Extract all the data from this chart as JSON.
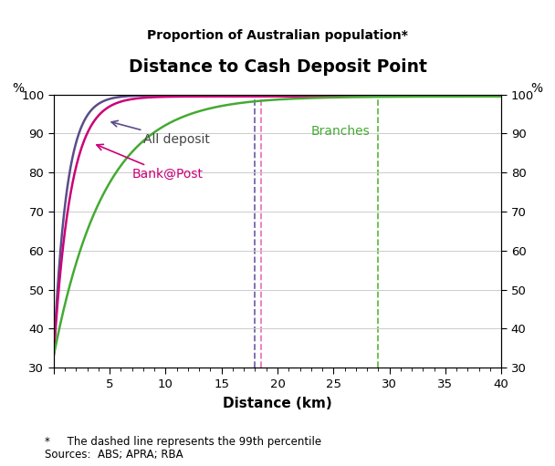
{
  "title": "Distance to Cash Deposit Point",
  "subtitle": "Proportion of Australian population*",
  "xlabel": "Distance (km)",
  "ylabel_left": "%",
  "ylabel_right": "%",
  "xlim": [
    0,
    40
  ],
  "ylim": [
    30,
    100
  ],
  "xticks": [
    0,
    5,
    10,
    15,
    20,
    25,
    30,
    35,
    40
  ],
  "yticks": [
    30,
    40,
    50,
    60,
    70,
    80,
    90,
    100
  ],
  "vline_alldeposit_x": 18.0,
  "vline_bankpost_x": 18.5,
  "vline_branches_x": 29.0,
  "color_all_deposit": "#5B4C8A",
  "color_bank_post": "#CC0077",
  "color_branches": "#44AA33",
  "color_vline_alldeposit": "#7766AA",
  "color_vline_bankpost": "#EE77BB",
  "color_vline_branches": "#66BB44",
  "footnote1": "*     The dashed line represents the 99th percentile",
  "footnote2": "Sources:  ABS; APRA; RBA",
  "label_all_deposit": "All deposit",
  "label_bank_post": "Bank@Post",
  "label_branches": "Branches"
}
